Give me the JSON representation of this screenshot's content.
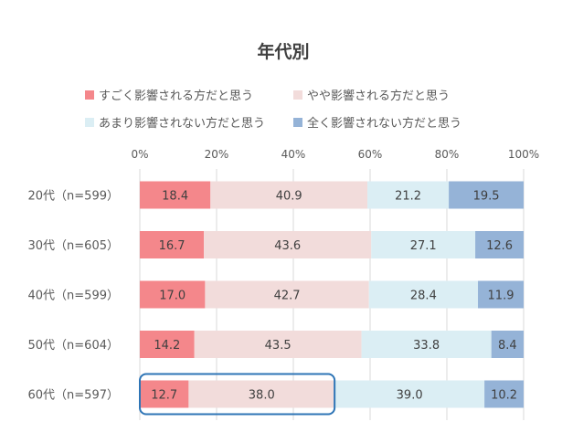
{
  "chart_data": {
    "type": "bar",
    "orientation": "horizontal",
    "stacked": "percent",
    "title": "年代別",
    "categories": [
      "20代（n=599）",
      "30代（n=605）",
      "40代（n=599）",
      "50代（n=604）",
      "60代（n=597）"
    ],
    "series": [
      {
        "name": "すごく影響される方だと思う",
        "color": "#f4878b",
        "values": [
          18.4,
          16.7,
          17.0,
          14.2,
          12.7
        ]
      },
      {
        "name": "やや影響される方だと思う",
        "color": "#f2dcdb",
        "values": [
          40.9,
          43.6,
          42.7,
          43.5,
          38.0
        ]
      },
      {
        "name": "あまり影響されない方だと思う",
        "color": "#dbeef4",
        "values": [
          21.2,
          27.1,
          28.4,
          33.8,
          39.0
        ]
      },
      {
        "name": "全く影響されない方だと思う",
        "color": "#95b3d7",
        "values": [
          19.5,
          12.6,
          11.9,
          8.4,
          10.2
        ]
      }
    ],
    "xaxis": {
      "ticks": [
        "0%",
        "20%",
        "40%",
        "60%",
        "80%",
        "100%"
      ],
      "range": [
        0,
        100
      ]
    },
    "grid": true,
    "legend_position": "top",
    "highlight": {
      "category_index": 4,
      "series_indices": [
        0,
        1
      ],
      "color": "#2e75b6"
    }
  }
}
